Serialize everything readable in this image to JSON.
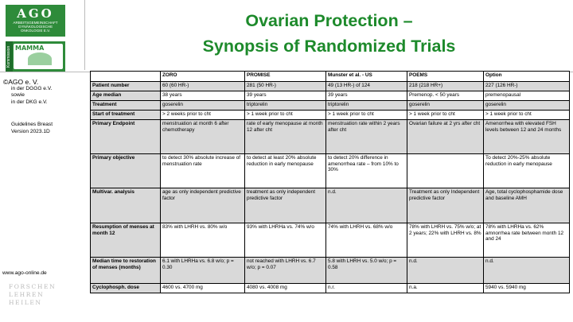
{
  "title_line1": "Ovarian Protection –",
  "title_line2": "Synopsis of Randomized Trials",
  "logos": {
    "ago": "AGO",
    "ago_sub": "Arbeitsgemeinschaft Gynäkologische Onkologie e.V.",
    "mamma": "MAMMA",
    "mamma_band": "Kommission"
  },
  "org": {
    "name": "©AGO e. V.",
    "line1": "in der DGGG e.V.",
    "line2": "sowie",
    "line3": "in der DKG e.V."
  },
  "guidelines": {
    "line1": "Guidelines Breast",
    "line2": "Version 2023.1D"
  },
  "website": "www.ago-online.de",
  "motto": [
    "FORSCHEN",
    "LEHREN",
    "HEILEN"
  ],
  "table": {
    "headers": [
      "",
      "ZORO",
      "PROMISE",
      "Munster et al. - US",
      "POEMS",
      "Option"
    ],
    "rows": [
      {
        "label": "Patient number",
        "cells": [
          "60 (60 HR-)",
          "281 (50 HR-)",
          "49 (13 HR-) of 124",
          "218 (218 HR+)",
          "227 (126 HR-)"
        ]
      },
      {
        "label": "Age median",
        "cells": [
          "38 years",
          "39 years",
          "39 years",
          "Premenop. < 50 years",
          "premenopausal"
        ]
      },
      {
        "label": "Treatment",
        "cells": [
          "goserelin",
          "triptorelin",
          "triptorelin",
          "goserelin",
          "goserelin"
        ]
      },
      {
        "label": "Start of treatment",
        "cells": [
          "> 2 weeks prior to cht",
          "> 1 week prior to cht",
          "> 1 week prior to cht",
          "> 1 week prior to cht",
          "> 1 week prior to cht"
        ]
      },
      {
        "label": "Primary Endpoint",
        "cells": [
          "menstruation at month 6 after chemotherapy",
          "rate of early menopause at month 12 after cht",
          "menstruation rate within 2 years after cht",
          "Ovarian failure at 2 yrs after cht",
          "Amenorrhea with elevated FSH levels between 12 and 24 months"
        ]
      },
      {
        "label": "Primary objective",
        "cells": [
          "to detect 30% absolute increase of menstruation rate",
          "to detect at least 20% absolute reduction in early menopause",
          " to detect 20% difference in amenorrhea  rate – from 10% to 30%",
          "",
          "To detect 20%-25% absolute reduction in early menopause"
        ]
      },
      {
        "label": "Multivar. analysis",
        "cells": [
          "age as only independent predictive factor",
          "treatment as only independent predictive factor",
          "n.d.",
          "Treatment as only Independent predictive factor",
          "Age, total cyclophosphamide dose and baseline AMH"
        ]
      },
      {
        "label": "Resumption of menses at month 12",
        "cells": [
          "83% with LHRH vs. 80% w/o",
          "93% with LHRHa vs. 74% w/o",
          "74% with LHRH vs. 68% w/o",
          "78% with LHRH vs. 75% w/o; at 2 years; 22% with LHRH vs. 8%",
          "78% with LHRHa vs. 62% amnorrhea rate between month 12 and 24"
        ]
      },
      {
        "label": "Median time to restoration of menses (months)",
        "cells": [
          "6.1 with LHRHa vs. 6.8 w/o; p = 0.30",
          "not reached with LHRH vs. 6.7 w/o; p = 0.07",
          "5.8 with LHRH vs. 5.0 w/o; p = 0.58",
          "n.d.",
          "n.d."
        ]
      },
      {
        "label": "Cyclophosph. dose",
        "cells": [
          "4600 vs. 4700 mg",
          "4080 vs. 4008 mg",
          "n.r.",
          "n.a.",
          "5940 vs. 5940 mg"
        ]
      }
    ]
  }
}
